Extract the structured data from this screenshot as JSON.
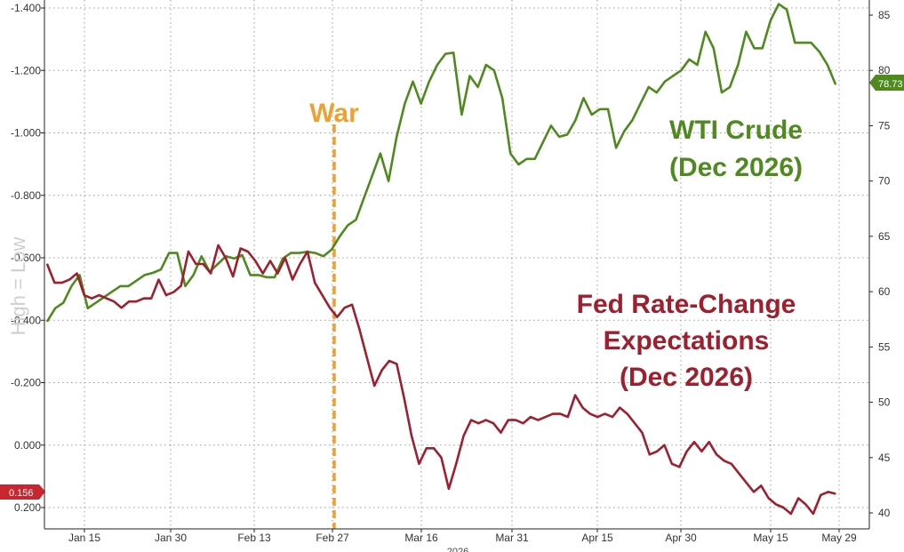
{
  "chart_data": {
    "type": "line",
    "left_axis": {
      "label": "High = Low",
      "ticks": [
        "-1.400",
        "-1.200",
        "-1.000",
        "-0.800",
        "-0.600",
        "-0.400",
        "-0.200",
        "0.000",
        "0.200"
      ],
      "tick_values": [
        -1.4,
        -1.2,
        -1.0,
        -0.8,
        -0.6,
        -0.4,
        -0.2,
        0.0,
        0.2
      ],
      "range": [
        -1.4,
        0.2
      ],
      "inverted": true
    },
    "right_axis": {
      "ticks": [
        "85",
        "80",
        "75",
        "70",
        "65",
        "60",
        "55",
        "50",
        "45",
        "40"
      ],
      "tick_values": [
        85,
        80,
        75,
        70,
        65,
        60,
        55,
        50,
        45,
        40
      ],
      "range": [
        39,
        86
      ]
    },
    "x_axis": {
      "ticks": [
        "Jan 15",
        "Jan 30",
        "Feb 13",
        "Feb 27",
        "Mar 16",
        "Mar 31",
        "Apr 15",
        "Apr 30",
        "May 15",
        "May 29"
      ],
      "year_label": "2026"
    },
    "grid": true,
    "event_line": {
      "label": "War",
      "at_tick_index": 3,
      "color": "#f0a030"
    },
    "series": [
      {
        "name": "WTI Crude (Dec 2026)",
        "label_lines": [
          "WTI Crude",
          "(Dec 2026)"
        ],
        "axis": "right",
        "color": "#4e8a1e",
        "last_value_label": "78.73",
        "values": [
          57.3,
          58.5,
          59.0,
          60.5,
          61.5,
          58.5,
          59.0,
          59.5,
          60.0,
          60.5,
          60.5,
          61.0,
          61.5,
          61.7,
          62.0,
          63.5,
          63.5,
          60.5,
          61.5,
          63.2,
          61.8,
          62.5,
          63.2,
          63.0,
          63.3,
          61.5,
          61.5,
          61.3,
          61.3,
          63.0,
          63.5,
          63.5,
          63.6,
          63.5,
          63.2,
          63.8,
          65.0,
          66.0,
          66.5,
          68.5,
          70.5,
          72.5,
          70.0,
          74.0,
          77.0,
          79.0,
          77.0,
          79.0,
          80.5,
          81.5,
          81.6,
          76.0,
          79.5,
          78.5,
          80.5,
          80.0,
          77.5,
          72.5,
          71.5,
          72.0,
          72.0,
          73.5,
          75.0,
          74.0,
          74.2,
          75.5,
          77.5,
          76.0,
          76.5,
          76.5,
          73.0,
          74.5,
          75.5,
          77.0,
          78.5,
          78.0,
          79.0,
          79.5,
          80.0,
          81.0,
          80.5,
          83.5,
          82.0,
          78.0,
          78.5,
          80.5,
          83.5,
          82.0,
          82.0,
          84.5,
          86.0,
          85.5,
          82.5,
          82.5,
          82.5,
          81.7,
          80.5,
          78.73
        ]
      },
      {
        "name": "Fed Rate-Change Expectations (Dec 2026)",
        "label_lines": [
          "Fed Rate-Change",
          "Expectations",
          "(Dec 2026)"
        ],
        "axis": "left",
        "color": "#9e1f2e",
        "last_value_label": "0.156",
        "values": [
          -0.58,
          -0.52,
          -0.52,
          -0.53,
          -0.55,
          -0.48,
          -0.47,
          -0.48,
          -0.47,
          -0.46,
          -0.44,
          -0.46,
          -0.46,
          -0.47,
          -0.47,
          -0.53,
          -0.48,
          -0.49,
          -0.51,
          -0.62,
          -0.58,
          -0.58,
          -0.55,
          -0.64,
          -0.6,
          -0.54,
          -0.63,
          -0.62,
          -0.59,
          -0.55,
          -0.59,
          -0.55,
          -0.6,
          -0.53,
          -0.58,
          -0.62,
          -0.52,
          -0.48,
          -0.44,
          -0.41,
          -0.44,
          -0.45,
          -0.37,
          -0.28,
          -0.19,
          -0.24,
          -0.27,
          -0.26,
          -0.15,
          -0.03,
          0.06,
          0.01,
          0.01,
          0.04,
          0.14,
          0.06,
          -0.03,
          -0.08,
          -0.07,
          -0.08,
          -0.07,
          -0.04,
          -0.08,
          -0.08,
          -0.07,
          -0.09,
          -0.08,
          -0.09,
          -0.1,
          -0.1,
          -0.09,
          -0.16,
          -0.12,
          -0.1,
          -0.09,
          -0.1,
          -0.09,
          -0.12,
          -0.1,
          -0.07,
          -0.04,
          0.03,
          0.02,
          0.0,
          0.06,
          0.07,
          0.02,
          -0.01,
          0.02,
          -0.01,
          0.03,
          0.05,
          0.06,
          0.09,
          0.12,
          0.15,
          0.13,
          0.17,
          0.19,
          0.2,
          0.22,
          0.17,
          0.19,
          0.22,
          0.16,
          0.15,
          0.156
        ]
      }
    ]
  }
}
